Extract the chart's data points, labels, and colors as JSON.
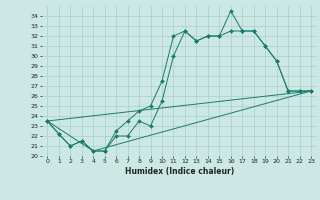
{
  "title": "",
  "xlabel": "Humidex (Indice chaleur)",
  "bg_color": "#cce8e4",
  "grid_color": "#aacfcb",
  "line_color": "#1a7a6e",
  "xlim": [
    -0.5,
    23.5
  ],
  "ylim": [
    20,
    35
  ],
  "xticks": [
    0,
    1,
    2,
    3,
    4,
    5,
    6,
    7,
    8,
    9,
    10,
    11,
    12,
    13,
    14,
    15,
    16,
    17,
    18,
    19,
    20,
    21,
    22,
    23
  ],
  "yticks": [
    20,
    21,
    22,
    23,
    24,
    25,
    26,
    27,
    28,
    29,
    30,
    31,
    32,
    33,
    34
  ],
  "line1_x": [
    0,
    1,
    2,
    3,
    4,
    5,
    6,
    7,
    8,
    9,
    10,
    11,
    12,
    13,
    14,
    15,
    16,
    17,
    18,
    19,
    20,
    21,
    22,
    23
  ],
  "line1_y": [
    23.5,
    22.2,
    21.0,
    21.5,
    20.5,
    20.5,
    22.5,
    23.5,
    24.5,
    25.0,
    27.5,
    32.0,
    32.5,
    31.5,
    32.0,
    32.0,
    34.5,
    32.5,
    32.5,
    31.0,
    29.5,
    26.5,
    26.5,
    26.5
  ],
  "line2_x": [
    0,
    1,
    2,
    3,
    4,
    5,
    6,
    7,
    8,
    9,
    10,
    11,
    12,
    13,
    14,
    15,
    16,
    17,
    18,
    19,
    20,
    21,
    22,
    23
  ],
  "line2_y": [
    23.5,
    22.2,
    21.0,
    21.5,
    20.5,
    20.5,
    22.0,
    22.0,
    23.5,
    23.0,
    25.5,
    30.0,
    32.5,
    31.5,
    32.0,
    32.0,
    32.5,
    32.5,
    32.5,
    31.0,
    29.5,
    26.5,
    26.5,
    26.5
  ],
  "line3_x": [
    0,
    23
  ],
  "line3_y": [
    23.5,
    26.5
  ],
  "line4_x": [
    0,
    4,
    23
  ],
  "line4_y": [
    23.5,
    20.5,
    26.5
  ],
  "xlabel_fontsize": 5.5,
  "tick_fontsize": 4.5
}
